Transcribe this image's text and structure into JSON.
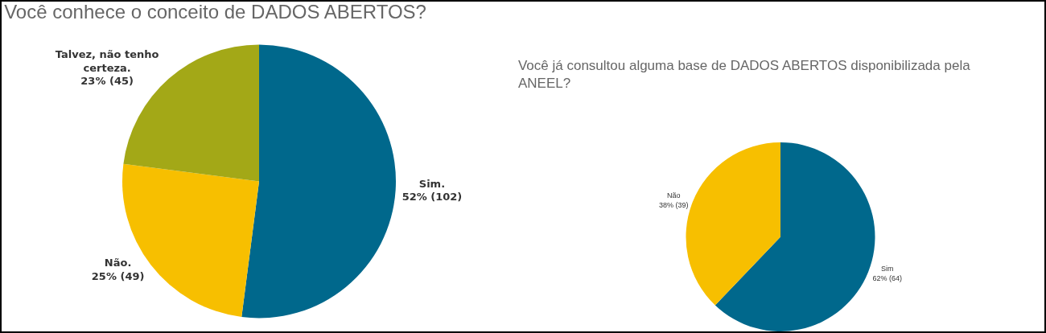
{
  "chart_data": [
    {
      "type": "pie",
      "title": "Você conhece o conceito de DADOS ABERTOS?",
      "categories": [
        "Sim.",
        "Não.",
        "Talvez, não tenho certeza."
      ],
      "values": [
        102,
        49,
        45
      ],
      "value_labels": [
        "52% (102)",
        "25% (49)",
        "23% (45)"
      ],
      "colors": [
        "#00688c",
        "#f7bf00",
        "#a3a817"
      ]
    },
    {
      "type": "pie",
      "title": "Você já consultou alguma base de DADOS ABERTOS disponibilizada pela ANEEL?",
      "categories": [
        "Sim",
        "Não"
      ],
      "values": [
        64,
        39
      ],
      "value_labels": [
        "62% (64)",
        "38% (39)"
      ],
      "colors": [
        "#00688c",
        "#f7bf00"
      ]
    }
  ]
}
